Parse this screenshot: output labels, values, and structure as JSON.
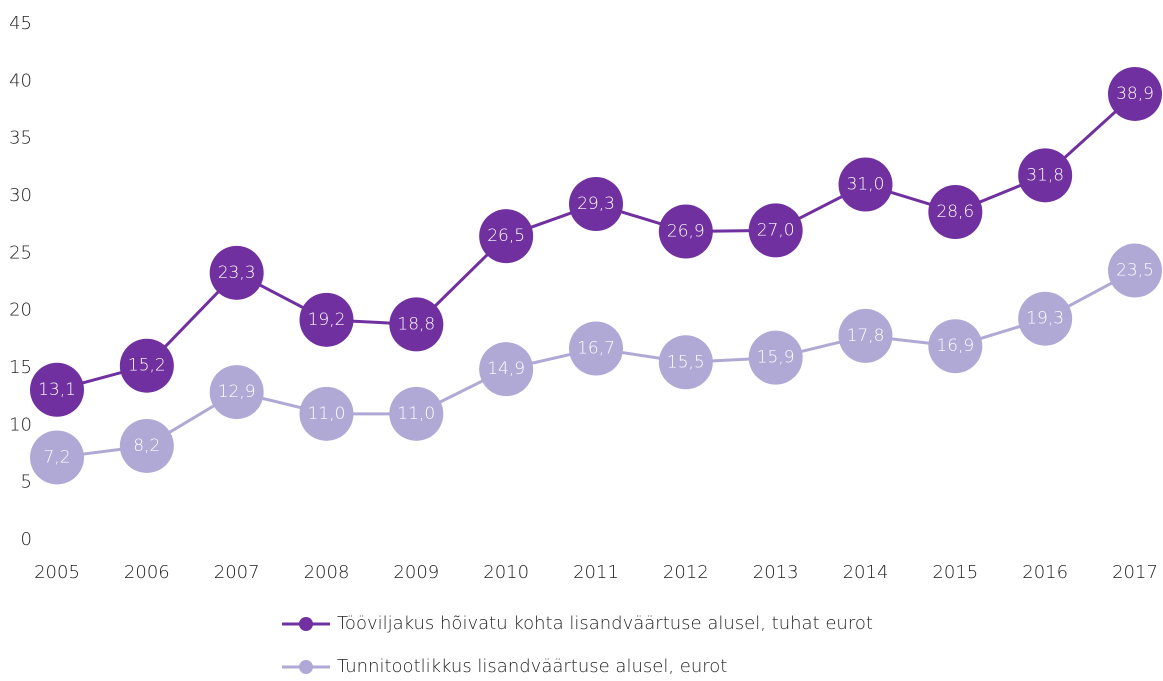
{
  "chart_data": {
    "type": "line",
    "categories": [
      "2005",
      "2006",
      "2007",
      "2008",
      "2009",
      "2010",
      "2011",
      "2012",
      "2013",
      "2014",
      "2015",
      "2016",
      "2017"
    ],
    "series": [
      {
        "name": "Tööviljakus hõivatu kohta lisandväärtuse alusel, tuhat eurot",
        "color": "#7030a0",
        "values": [
          13.1,
          15.2,
          23.3,
          19.2,
          18.8,
          26.5,
          29.3,
          26.9,
          27.0,
          31.0,
          28.6,
          31.8,
          38.9
        ],
        "value_labels": [
          "13,1",
          "15,2",
          "23,3",
          "19,2",
          "18,8",
          "26,5",
          "29,3",
          "26,9",
          "27,0",
          "31,0",
          "28,6",
          "31,8",
          "38,9"
        ]
      },
      {
        "name": "Tunnitootlikkus lisandväärtuse alusel, eurot",
        "color": "#b1a9d5",
        "values": [
          7.2,
          8.2,
          12.9,
          11.0,
          11.0,
          14.9,
          16.7,
          15.5,
          15.9,
          17.8,
          16.9,
          19.3,
          23.5
        ],
        "value_labels": [
          "7,2",
          "8,2",
          "12,9",
          "11,0",
          "11,0",
          "14,9",
          "16,7",
          "15,5",
          "15,9",
          "17,8",
          "16,9",
          "19,3",
          "23,5"
        ]
      }
    ],
    "ylim": [
      0,
      45
    ],
    "yticks": [
      0,
      5,
      10,
      15,
      20,
      25,
      30,
      35,
      40,
      45
    ],
    "grid": false,
    "legend": "bottom"
  }
}
